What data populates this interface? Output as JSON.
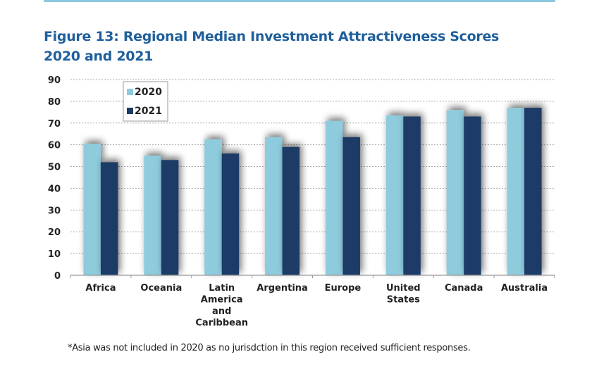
{
  "figure": {
    "title_line1": "Figure 13: Regional Median Investment Attractiveness Scores",
    "title_line2": "2020 and 2021",
    "footnote": "*Asia was not included in 2020 as no jurisdction in this region received sufficient responses."
  },
  "colors": {
    "accent_rule": "#8cc8e0",
    "title": "#1f5f9c",
    "series_2020": "#8ecbdd",
    "series_2021": "#1b3a66"
  },
  "chart_data": {
    "type": "bar",
    "title": "Figure 13: Regional Median Investment Attractiveness Scores 2020 and 2021",
    "xlabel": "",
    "ylabel": "",
    "ylim": [
      0,
      90
    ],
    "yticks": [
      0,
      10,
      20,
      30,
      40,
      50,
      60,
      70,
      80,
      90
    ],
    "grid": true,
    "legend_position": "top-left",
    "categories": [
      [
        "Africa"
      ],
      [
        "Oceania"
      ],
      [
        "Latin",
        "America",
        "and",
        "Caribbean"
      ],
      [
        "Argentina"
      ],
      [
        "Europe"
      ],
      [
        "United",
        "States"
      ],
      [
        "Canada"
      ],
      [
        "Australia"
      ]
    ],
    "series": [
      {
        "name": "2020",
        "color": "#8ecbdd",
        "values": [
          60.5,
          55,
          62.5,
          63.5,
          71,
          73.5,
          76,
          77
        ]
      },
      {
        "name": "2021",
        "color": "#1b3a66",
        "values": [
          52,
          53,
          56,
          59,
          63.5,
          73,
          73,
          77
        ]
      }
    ],
    "footnote": "*Asia was not included in 2020 as no jurisdction in this region received sufficient responses."
  }
}
